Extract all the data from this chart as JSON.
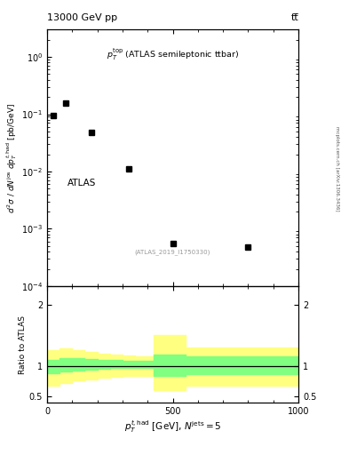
{
  "title_left": "13000 GeV pp",
  "title_right": "tt̅",
  "annotation_label": "p_{T}^{top} (ATLAS semileptonic ttbar)",
  "atlas_label": "ATLAS",
  "dataset_label": "(ATLAS_2019_I1750330)",
  "ylabel_ratio": "Ratio to ATLAS",
  "right_label": "mcplots.cern.ch [arXiv:1306.3436]",
  "data_x": [
    25,
    75,
    175,
    325,
    500,
    800
  ],
  "data_y": [
    0.095,
    0.155,
    0.048,
    0.011,
    0.00055,
    0.00048
  ],
  "main_ylim": [
    0.0001,
    3
  ],
  "ratio_ylim": [
    0.4,
    2.3
  ],
  "xmin": 0,
  "xmax": 1000,
  "seg1_x": [
    0,
    50,
    100,
    150,
    200,
    250,
    300,
    350,
    400,
    425
  ],
  "seg1_yl": [
    0.68,
    0.72,
    0.76,
    0.78,
    0.8,
    0.82,
    0.83,
    0.84,
    0.84,
    0.84
  ],
  "seg1_yh": [
    1.25,
    1.28,
    1.25,
    1.22,
    1.2,
    1.18,
    1.17,
    1.16,
    1.16,
    1.16
  ],
  "seg1_gl": [
    0.88,
    0.91,
    0.93,
    0.94,
    0.95,
    0.96,
    0.96,
    0.97,
    0.97,
    0.97
  ],
  "seg1_gh": [
    1.1,
    1.13,
    1.12,
    1.11,
    1.1,
    1.09,
    1.08,
    1.08,
    1.08,
    1.08
  ],
  "seg2_x": [
    425,
    500,
    550,
    600,
    700,
    800,
    900,
    1000
  ],
  "seg2_yl": [
    0.6,
    0.6,
    0.68,
    0.68,
    0.68,
    0.68,
    0.68,
    0.68
  ],
  "seg2_yh": [
    1.5,
    1.5,
    1.3,
    1.3,
    1.3,
    1.3,
    1.3,
    1.3
  ],
  "seg2_gl": [
    0.84,
    0.84,
    0.87,
    0.87,
    0.87,
    0.87,
    0.87,
    0.87
  ],
  "seg2_gh": [
    1.18,
    1.18,
    1.15,
    1.15,
    1.15,
    1.15,
    1.15,
    1.15
  ],
  "marker_color": "#000000",
  "marker_size": 4,
  "yellow_color": "#ffff80",
  "green_color": "#80ff80",
  "background_color": "#ffffff"
}
